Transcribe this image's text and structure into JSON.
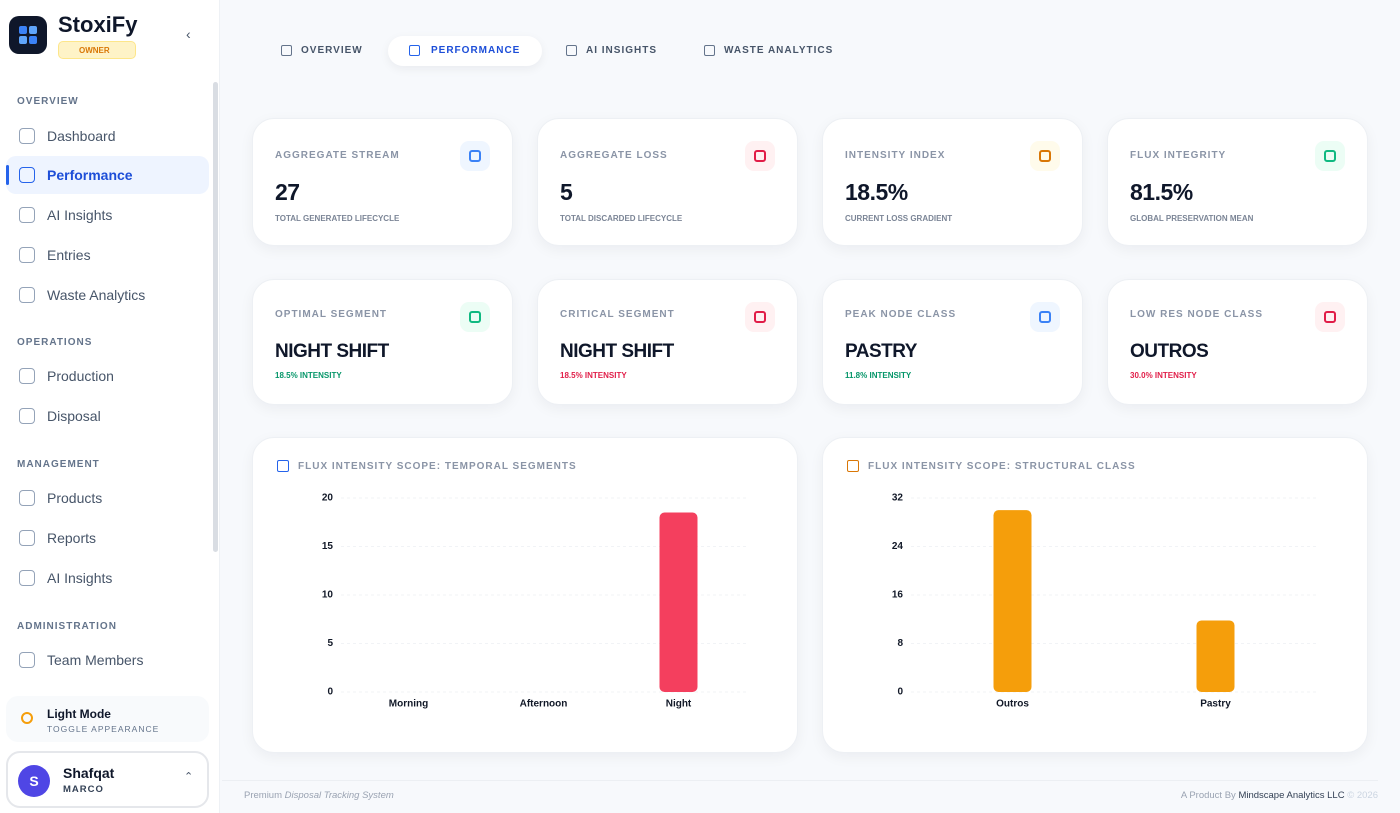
{
  "brand": {
    "name": "StoxiFy",
    "role": "OWNER"
  },
  "nav": [
    {
      "section": "OVERVIEW",
      "items": [
        "Dashboard",
        "Performance",
        "AI Insights",
        "Entries",
        "Waste Analytics"
      ]
    },
    {
      "section": "OPERATIONS",
      "items": [
        "Production",
        "Disposal"
      ]
    },
    {
      "section": "MANAGEMENT",
      "items": [
        "Products",
        "Reports",
        "AI Insights"
      ]
    },
    {
      "section": "ADMINISTRATION",
      "items": [
        "Team Members"
      ]
    }
  ],
  "theme": {
    "label": "Light Mode",
    "hint": "TOGGLE APPEARANCE"
  },
  "user": {
    "initial": "S",
    "name": "Shafqat",
    "org": "MARCO"
  },
  "tabs": [
    "OVERVIEW",
    "PERFORMANCE",
    "AI INSIGHTS",
    "WASTE ANALYTICS"
  ],
  "stats": [
    {
      "label": "AGGREGATE STREAM",
      "value": "27",
      "caption": "TOTAL GENERATED LIFECYCLE"
    },
    {
      "label": "AGGREGATE LOSS",
      "value": "5",
      "caption": "TOTAL DISCARDED LIFECYCLE"
    },
    {
      "label": "INTENSITY INDEX",
      "value": "18.5%",
      "caption": "CURRENT LOSS GRADIENT"
    },
    {
      "label": "FLUX INTEGRITY",
      "value": "81.5%",
      "caption": "GLOBAL PRESERVATION MEAN"
    }
  ],
  "highlights": [
    {
      "label": "OPTIMAL SEGMENT",
      "value": "NIGHT SHIFT",
      "note": "18.5% INTENSITY"
    },
    {
      "label": "CRITICAL SEGMENT",
      "value": "NIGHT SHIFT",
      "note": "18.5% INTENSITY"
    },
    {
      "label": "PEAK NODE CLASS",
      "value": "PASTRY",
      "note": "11.8% INTENSITY"
    },
    {
      "label": "LOW RES NODE CLASS",
      "value": "OUTROS",
      "note": "30.0% INTENSITY"
    }
  ],
  "chart_data": [
    {
      "type": "bar",
      "title": "FLUX INTENSITY SCOPE: TEMPORAL SEGMENTS",
      "categories": [
        "Morning",
        "Afternoon",
        "Night"
      ],
      "values": [
        0,
        0,
        18.5
      ],
      "color": "#f43f5e",
      "ylim": [
        0,
        20
      ],
      "yticks": [
        0,
        5,
        10,
        15,
        20
      ],
      "grid": true
    },
    {
      "type": "bar",
      "title": "FLUX INTENSITY SCOPE: STRUCTURAL CLASS",
      "categories": [
        "Outros",
        "Pastry"
      ],
      "values": [
        30.0,
        11.8
      ],
      "color": "#f59e0b",
      "ylim": [
        0,
        32
      ],
      "yticks": [
        0,
        8,
        16,
        24,
        32
      ],
      "grid": true
    }
  ],
  "footer": {
    "left_prefix": "Premium",
    "left_em": "Disposal Tracking System",
    "right_prefix": "A Product By",
    "company": "Mindscape Analytics LLC",
    "year": "© 2026"
  }
}
